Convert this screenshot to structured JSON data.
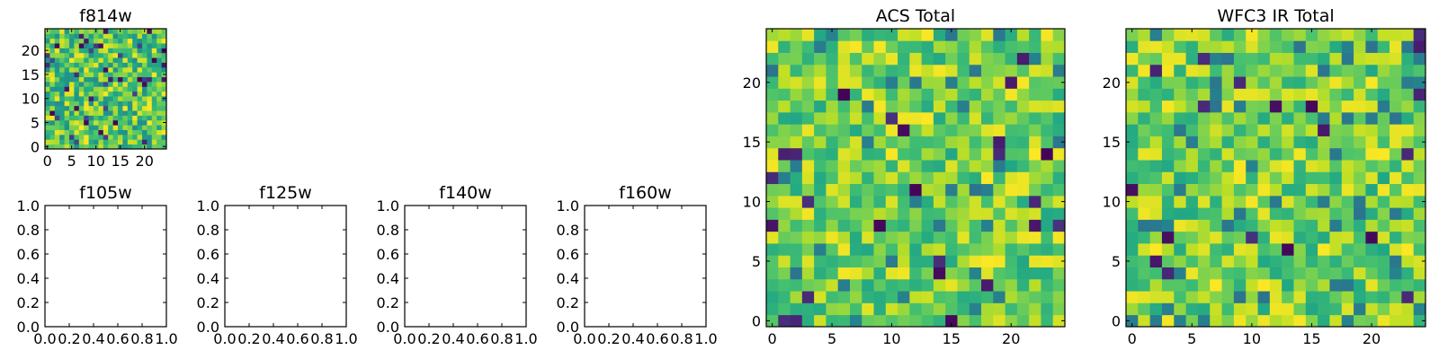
{
  "chart_data": [
    {
      "id": "f814w",
      "type": "heatmap",
      "title": "f814w",
      "xlim": [
        -0.5,
        24.5
      ],
      "ylim": [
        -0.5,
        24.5
      ],
      "xticks": [
        0,
        5,
        10,
        15,
        20
      ],
      "yticks": [
        0,
        5,
        10,
        15,
        20
      ],
      "xtick_labels": [
        "0",
        "5",
        "10",
        "15",
        "20"
      ],
      "ytick_labels": [
        "0",
        "5",
        "10",
        "15",
        "20"
      ],
      "grid_size": [
        25,
        25
      ],
      "colormap": "viridis",
      "seed": 11,
      "noise": "high",
      "value_range": [
        0,
        1
      ]
    },
    {
      "id": "f105w",
      "type": "empty",
      "title": "f105w",
      "xlim": [
        0,
        1
      ],
      "ylim": [
        0,
        1
      ],
      "xticks": [
        0,
        0.2,
        0.4,
        0.6,
        0.8,
        1.0
      ],
      "yticks": [
        0,
        0.2,
        0.4,
        0.6,
        0.8,
        1.0
      ],
      "xtick_labels": [
        "0.0",
        "0.2",
        "0.4",
        "0.6",
        "0.8",
        "1.0"
      ],
      "ytick_labels": [
        "0.0",
        "0.2",
        "0.4",
        "0.6",
        "0.8",
        "1.0"
      ]
    },
    {
      "id": "f125w",
      "type": "empty",
      "title": "f125w",
      "xlim": [
        0,
        1
      ],
      "ylim": [
        0,
        1
      ],
      "xticks": [
        0,
        0.2,
        0.4,
        0.6,
        0.8,
        1.0
      ],
      "yticks": [
        0,
        0.2,
        0.4,
        0.6,
        0.8,
        1.0
      ],
      "xtick_labels": [
        "0.0",
        "0.2",
        "0.4",
        "0.6",
        "0.8",
        "1.0"
      ],
      "ytick_labels": [
        "0.0",
        "0.2",
        "0.4",
        "0.6",
        "0.8",
        "1.0"
      ]
    },
    {
      "id": "f140w",
      "type": "empty",
      "title": "f140w",
      "xlim": [
        0,
        1
      ],
      "ylim": [
        0,
        1
      ],
      "xticks": [
        0,
        0.2,
        0.4,
        0.6,
        0.8,
        1.0
      ],
      "yticks": [
        0,
        0.2,
        0.4,
        0.6,
        0.8,
        1.0
      ],
      "xtick_labels": [
        "0.0",
        "0.2",
        "0.4",
        "0.6",
        "0.8",
        "1.0"
      ],
      "ytick_labels": [
        "0.0",
        "0.2",
        "0.4",
        "0.6",
        "0.8",
        "1.0"
      ]
    },
    {
      "id": "f160w",
      "type": "empty",
      "title": "f160w",
      "xlim": [
        0,
        1
      ],
      "ylim": [
        0,
        1
      ],
      "xticks": [
        0,
        0.2,
        0.4,
        0.6,
        0.8,
        1.0
      ],
      "yticks": [
        0,
        0.2,
        0.4,
        0.6,
        0.8,
        1.0
      ],
      "xtick_labels": [
        "0.0",
        "0.2",
        "0.4",
        "0.6",
        "0.8",
        "1.0"
      ],
      "ytick_labels": [
        "0.0",
        "0.2",
        "0.4",
        "0.6",
        "0.8",
        "1.0"
      ]
    },
    {
      "id": "acs-total",
      "type": "heatmap",
      "title": "ACS Total",
      "xlim": [
        -0.5,
        24.5
      ],
      "ylim": [
        -0.5,
        24.5
      ],
      "xticks": [
        0,
        5,
        10,
        15,
        20
      ],
      "yticks": [
        0,
        5,
        10,
        15,
        20
      ],
      "xtick_labels": [
        "0",
        "5",
        "10",
        "15",
        "20"
      ],
      "ytick_labels": [
        "0",
        "5",
        "10",
        "15",
        "20"
      ],
      "grid_size": [
        25,
        25
      ],
      "colormap": "viridis",
      "seed": 27,
      "noise": "medium",
      "value_range": [
        0,
        1
      ]
    },
    {
      "id": "wfc3-ir-total",
      "type": "heatmap",
      "title": "WFC3 IR Total",
      "xlim": [
        -0.5,
        24.5
      ],
      "ylim": [
        -0.5,
        24.5
      ],
      "xticks": [
        0,
        5,
        10,
        15,
        20
      ],
      "yticks": [
        0,
        5,
        10,
        15,
        20
      ],
      "xtick_labels": [
        "0",
        "5",
        "10",
        "15",
        "20"
      ],
      "ytick_labels": [
        "0",
        "5",
        "10",
        "15",
        "20"
      ],
      "grid_size": [
        25,
        25
      ],
      "colormap": "viridis",
      "seed": 53,
      "noise": "medium",
      "value_range": [
        0,
        1
      ]
    }
  ]
}
